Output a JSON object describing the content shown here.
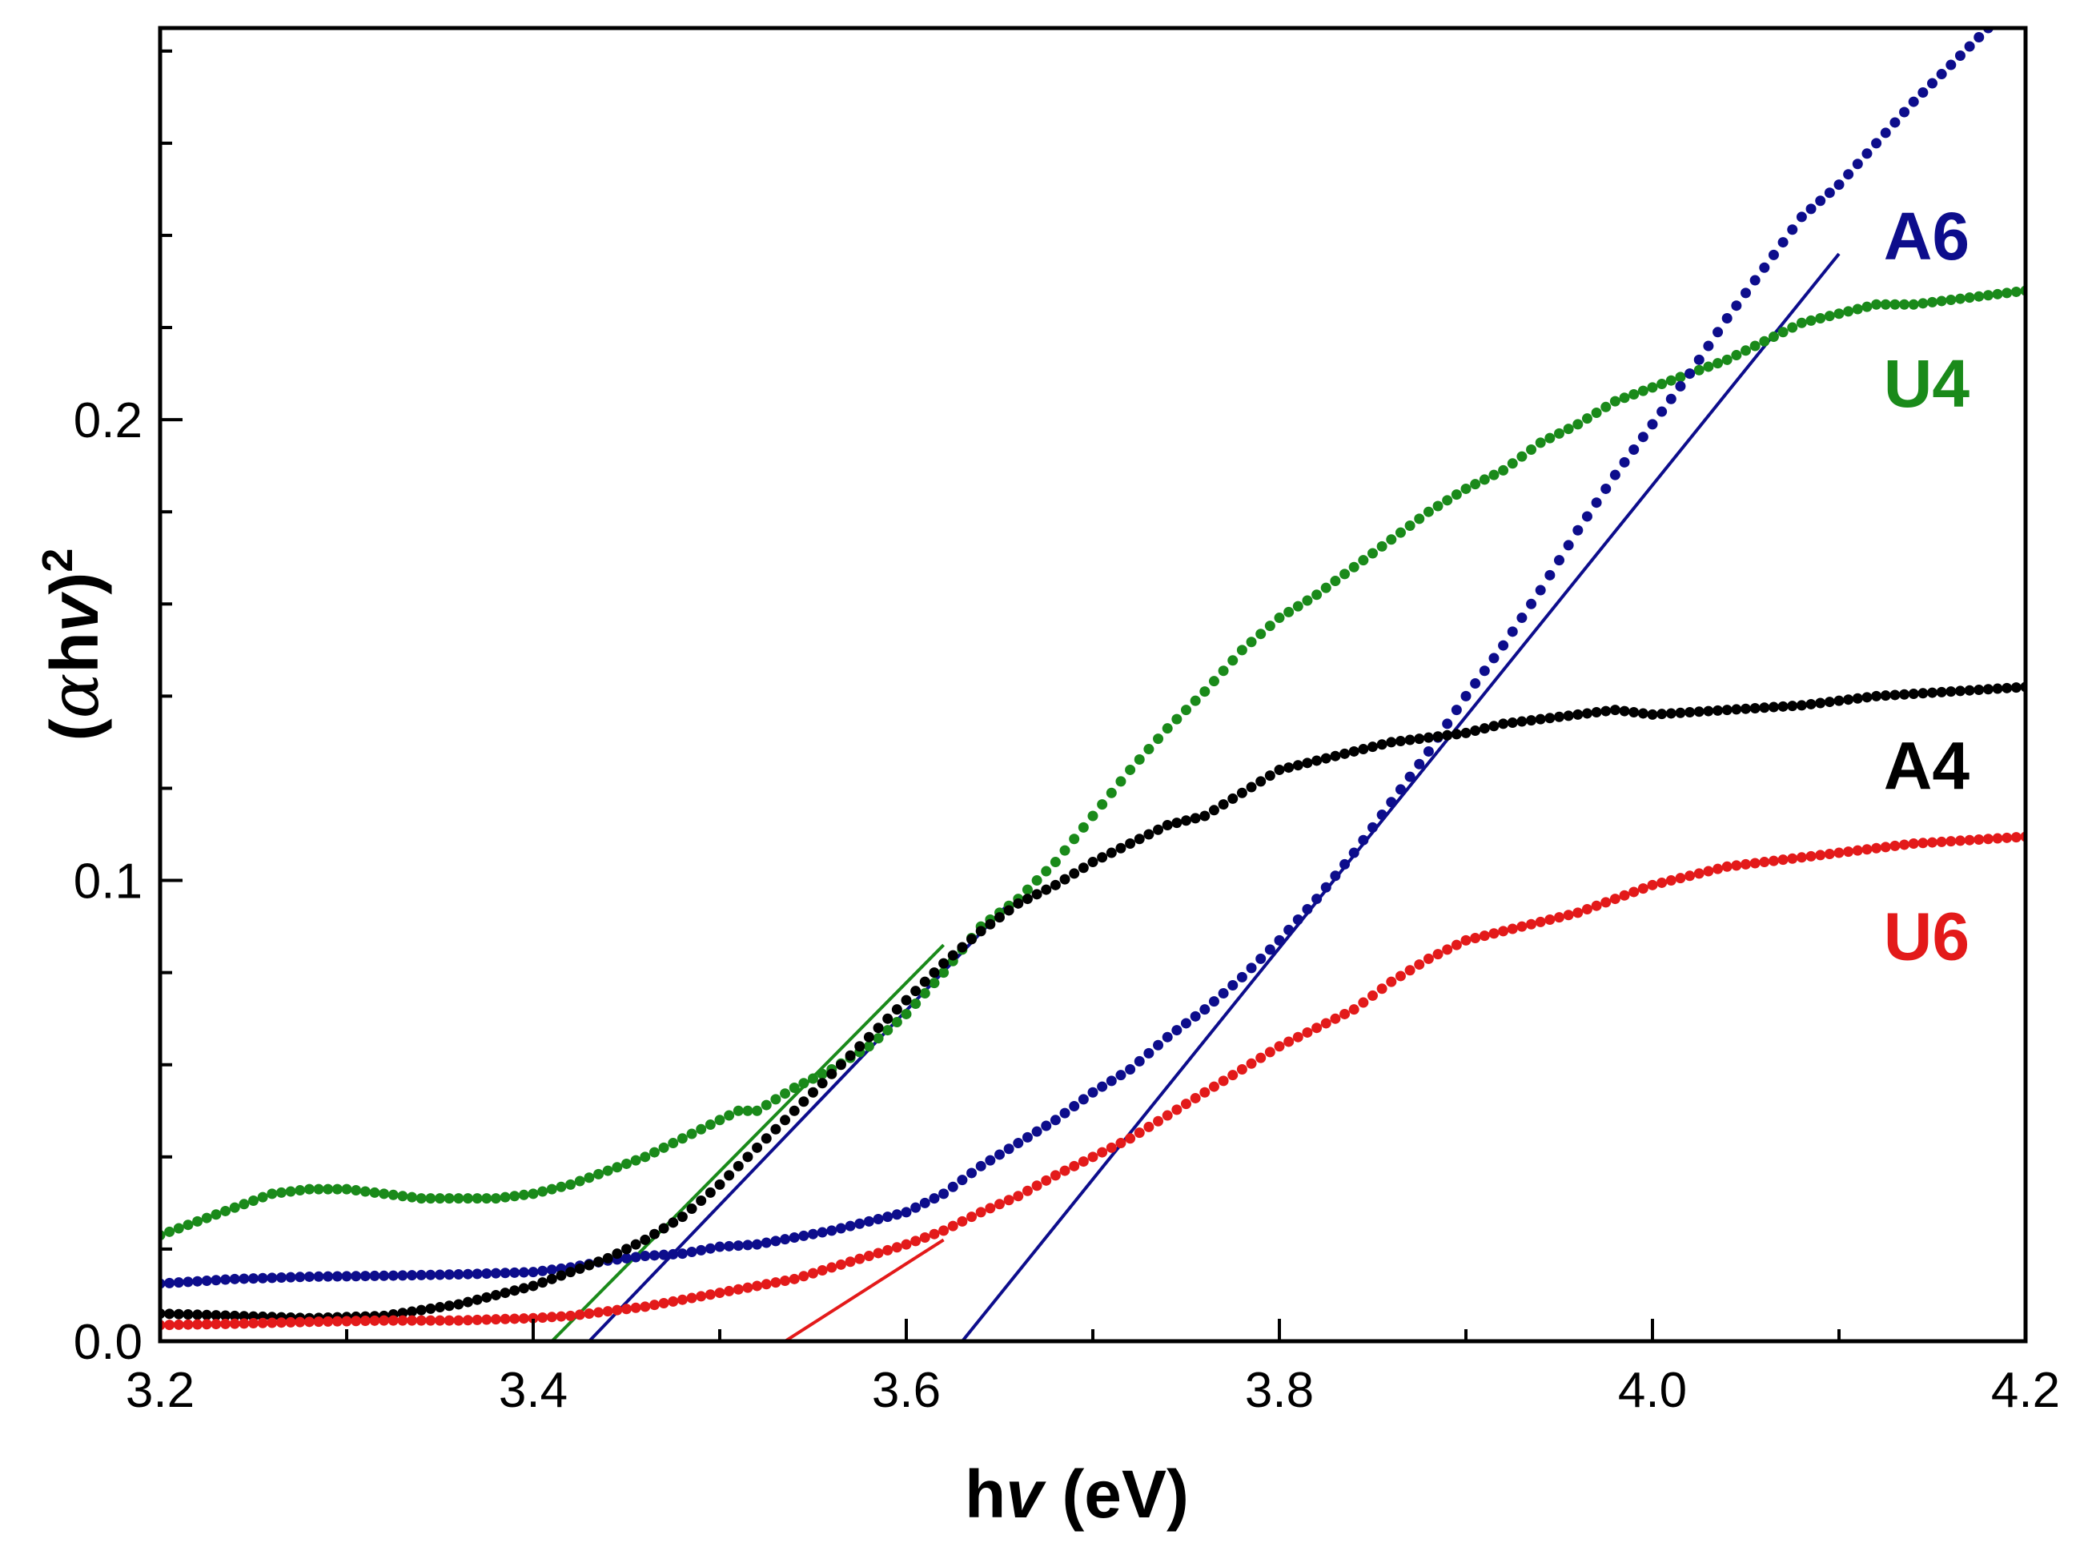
{
  "chart_data": {
    "type": "scatter",
    "title": "",
    "xlabel": {
      "main": "h",
      "italic": "v",
      "unit": " (eV)"
    },
    "ylabel": {
      "open": "(",
      "alpha": "α",
      "h": "h",
      "italic": "v",
      "close": ")",
      "sup": "2"
    },
    "xlim": [
      3.2,
      4.2
    ],
    "ylim": [
      0.0,
      0.285
    ],
    "grid": false,
    "legend": "inline-right",
    "x_ticks": [
      {
        "value": 3.2,
        "label": "3.2"
      },
      {
        "value": 3.4,
        "label": "3.4"
      },
      {
        "value": 3.6,
        "label": "3.6"
      },
      {
        "value": 3.8,
        "label": "3.8"
      },
      {
        "value": 4.0,
        "label": "4.0"
      },
      {
        "value": 4.2,
        "label": "4.2"
      }
    ],
    "x_minor_ticks": [
      3.3,
      3.5,
      3.7,
      3.9,
      4.1
    ],
    "y_ticks": [
      {
        "value": 0.0,
        "label": "0.0"
      },
      {
        "value": 0.1,
        "label": "0.1"
      },
      {
        "value": 0.2,
        "label": "0.2"
      }
    ],
    "y_minor_ticks": [
      0.02,
      0.04,
      0.06,
      0.08,
      0.12,
      0.14,
      0.16,
      0.18,
      0.22,
      0.24,
      0.26,
      0.28
    ],
    "series": [
      {
        "name": "U4",
        "label": "U4",
        "color": "#1a8a1a",
        "label_pos": [
          4.17,
          0.208
        ],
        "points": [
          [
            3.2,
            0.023
          ],
          [
            3.22,
            0.026
          ],
          [
            3.24,
            0.029
          ],
          [
            3.26,
            0.032
          ],
          [
            3.28,
            0.033
          ],
          [
            3.3,
            0.033
          ],
          [
            3.32,
            0.032
          ],
          [
            3.34,
            0.031
          ],
          [
            3.36,
            0.031
          ],
          [
            3.38,
            0.031
          ],
          [
            3.4,
            0.032
          ],
          [
            3.42,
            0.034
          ],
          [
            3.44,
            0.037
          ],
          [
            3.46,
            0.04
          ],
          [
            3.48,
            0.044
          ],
          [
            3.5,
            0.048
          ],
          [
            3.51,
            0.05
          ],
          [
            3.52,
            0.05
          ],
          [
            3.54,
            0.055
          ],
          [
            3.56,
            0.059
          ],
          [
            3.58,
            0.064
          ],
          [
            3.6,
            0.071
          ],
          [
            3.62,
            0.08
          ],
          [
            3.64,
            0.09
          ],
          [
            3.66,
            0.096
          ],
          [
            3.68,
            0.104
          ],
          [
            3.7,
            0.114
          ],
          [
            3.72,
            0.124
          ],
          [
            3.74,
            0.133
          ],
          [
            3.76,
            0.141
          ],
          [
            3.78,
            0.15
          ],
          [
            3.8,
            0.157
          ],
          [
            3.82,
            0.162
          ],
          [
            3.84,
            0.168
          ],
          [
            3.86,
            0.174
          ],
          [
            3.88,
            0.18
          ],
          [
            3.9,
            0.185
          ],
          [
            3.92,
            0.189
          ],
          [
            3.94,
            0.195
          ],
          [
            3.96,
            0.199
          ],
          [
            3.98,
            0.204
          ],
          [
            4.0,
            0.207
          ],
          [
            4.02,
            0.21
          ],
          [
            4.04,
            0.213
          ],
          [
            4.06,
            0.217
          ],
          [
            4.08,
            0.221
          ],
          [
            4.1,
            0.223
          ],
          [
            4.12,
            0.225
          ],
          [
            4.14,
            0.225
          ],
          [
            4.16,
            0.226
          ],
          [
            4.18,
            0.227
          ],
          [
            4.2,
            0.228
          ]
        ]
      },
      {
        "name": "A6",
        "label": "A6",
        "color": "#0d0d8c",
        "label_pos": [
          4.17,
          0.24
        ],
        "points": [
          [
            3.2,
            0.0125
          ],
          [
            3.24,
            0.0135
          ],
          [
            3.28,
            0.014
          ],
          [
            3.32,
            0.0142
          ],
          [
            3.36,
            0.0145
          ],
          [
            3.4,
            0.015
          ],
          [
            3.42,
            0.016
          ],
          [
            3.44,
            0.0175
          ],
          [
            3.46,
            0.0185
          ],
          [
            3.48,
            0.019
          ],
          [
            3.5,
            0.0205
          ],
          [
            3.52,
            0.021
          ],
          [
            3.54,
            0.0225
          ],
          [
            3.56,
            0.024
          ],
          [
            3.58,
            0.026
          ],
          [
            3.6,
            0.028
          ],
          [
            3.62,
            0.032
          ],
          [
            3.64,
            0.038
          ],
          [
            3.66,
            0.043
          ],
          [
            3.68,
            0.048
          ],
          [
            3.7,
            0.054
          ],
          [
            3.72,
            0.059
          ],
          [
            3.74,
            0.066
          ],
          [
            3.76,
            0.072
          ],
          [
            3.78,
            0.079
          ],
          [
            3.8,
            0.087
          ],
          [
            3.82,
            0.096
          ],
          [
            3.84,
            0.106
          ],
          [
            3.86,
            0.117
          ],
          [
            3.88,
            0.128
          ],
          [
            3.9,
            0.14
          ],
          [
            3.92,
            0.151
          ],
          [
            3.94,
            0.163
          ],
          [
            3.96,
            0.176
          ],
          [
            3.98,
            0.188
          ],
          [
            4.0,
            0.199
          ],
          [
            4.02,
            0.21
          ],
          [
            4.04,
            0.222
          ],
          [
            4.06,
            0.233
          ],
          [
            4.08,
            0.244
          ],
          [
            4.1,
            0.251
          ],
          [
            4.12,
            0.26
          ],
          [
            4.14,
            0.269
          ],
          [
            4.16,
            0.277
          ],
          [
            4.18,
            0.285
          ]
        ]
      },
      {
        "name": "A4",
        "label": "A4",
        "color": "#000000",
        "label_pos": [
          4.17,
          0.125
        ],
        "points": [
          [
            3.2,
            0.006
          ],
          [
            3.24,
            0.0055
          ],
          [
            3.28,
            0.005
          ],
          [
            3.32,
            0.0055
          ],
          [
            3.36,
            0.008
          ],
          [
            3.4,
            0.012
          ],
          [
            3.42,
            0.015
          ],
          [
            3.44,
            0.018
          ],
          [
            3.46,
            0.022
          ],
          [
            3.48,
            0.027
          ],
          [
            3.5,
            0.034
          ],
          [
            3.52,
            0.042
          ],
          [
            3.54,
            0.05
          ],
          [
            3.56,
            0.058
          ],
          [
            3.58,
            0.066
          ],
          [
            3.6,
            0.074
          ],
          [
            3.62,
            0.082
          ],
          [
            3.64,
            0.089
          ],
          [
            3.66,
            0.095
          ],
          [
            3.68,
            0.099
          ],
          [
            3.7,
            0.104
          ],
          [
            3.72,
            0.108
          ],
          [
            3.74,
            0.112
          ],
          [
            3.76,
            0.114
          ],
          [
            3.78,
            0.119
          ],
          [
            3.8,
            0.124
          ],
          [
            3.82,
            0.126
          ],
          [
            3.84,
            0.128
          ],
          [
            3.86,
            0.13
          ],
          [
            3.88,
            0.131
          ],
          [
            3.9,
            0.132
          ],
          [
            3.92,
            0.134
          ],
          [
            3.94,
            0.135
          ],
          [
            3.96,
            0.136
          ],
          [
            3.98,
            0.137
          ],
          [
            4.0,
            0.136
          ],
          [
            4.04,
            0.137
          ],
          [
            4.08,
            0.138
          ],
          [
            4.12,
            0.14
          ],
          [
            4.16,
            0.141
          ],
          [
            4.2,
            0.142
          ]
        ]
      },
      {
        "name": "U6",
        "label": "U6",
        "color": "#e31a1a",
        "label_pos": [
          4.17,
          0.088
        ],
        "points": [
          [
            3.2,
            0.0035
          ],
          [
            3.24,
            0.0038
          ],
          [
            3.28,
            0.0042
          ],
          [
            3.32,
            0.0045
          ],
          [
            3.36,
            0.0045
          ],
          [
            3.4,
            0.005
          ],
          [
            3.42,
            0.0055
          ],
          [
            3.44,
            0.0065
          ],
          [
            3.46,
            0.0075
          ],
          [
            3.48,
            0.009
          ],
          [
            3.5,
            0.0105
          ],
          [
            3.52,
            0.012
          ],
          [
            3.54,
            0.0135
          ],
          [
            3.56,
            0.016
          ],
          [
            3.58,
            0.0185
          ],
          [
            3.6,
            0.021
          ],
          [
            3.62,
            0.024
          ],
          [
            3.64,
            0.028
          ],
          [
            3.66,
            0.0315
          ],
          [
            3.68,
            0.036
          ],
          [
            3.7,
            0.04
          ],
          [
            3.72,
            0.044
          ],
          [
            3.74,
            0.049
          ],
          [
            3.76,
            0.054
          ],
          [
            3.78,
            0.059
          ],
          [
            3.8,
            0.064
          ],
          [
            3.82,
            0.068
          ],
          [
            3.84,
            0.072
          ],
          [
            3.86,
            0.078
          ],
          [
            3.88,
            0.083
          ],
          [
            3.9,
            0.087
          ],
          [
            3.92,
            0.089
          ],
          [
            3.94,
            0.091
          ],
          [
            3.96,
            0.093
          ],
          [
            3.98,
            0.096
          ],
          [
            4.0,
            0.099
          ],
          [
            4.02,
            0.101
          ],
          [
            4.04,
            0.103
          ],
          [
            4.06,
            0.104
          ],
          [
            4.08,
            0.105
          ],
          [
            4.1,
            0.106
          ],
          [
            4.12,
            0.107
          ],
          [
            4.14,
            0.108
          ],
          [
            4.16,
            0.1085
          ],
          [
            4.18,
            0.109
          ],
          [
            4.2,
            0.1095
          ]
        ]
      }
    ],
    "fit_lines": [
      {
        "name": "U4-fit",
        "color": "#1a8a1a",
        "from": [
          3.41,
          0.0
        ],
        "to": [
          3.62,
          0.086
        ]
      },
      {
        "name": "A4-fit",
        "color": "#0d0d8c",
        "from": [
          3.43,
          0.0
        ],
        "to": [
          3.655,
          0.095
        ]
      },
      {
        "name": "A6-fit",
        "color": "#0d0d8c",
        "from": [
          3.63,
          0.0
        ],
        "to": [
          4.1,
          0.236
        ]
      },
      {
        "name": "U6-fit",
        "color": "#e31a1a",
        "from": [
          3.535,
          0.0
        ],
        "to": [
          3.62,
          0.022
        ]
      }
    ]
  }
}
